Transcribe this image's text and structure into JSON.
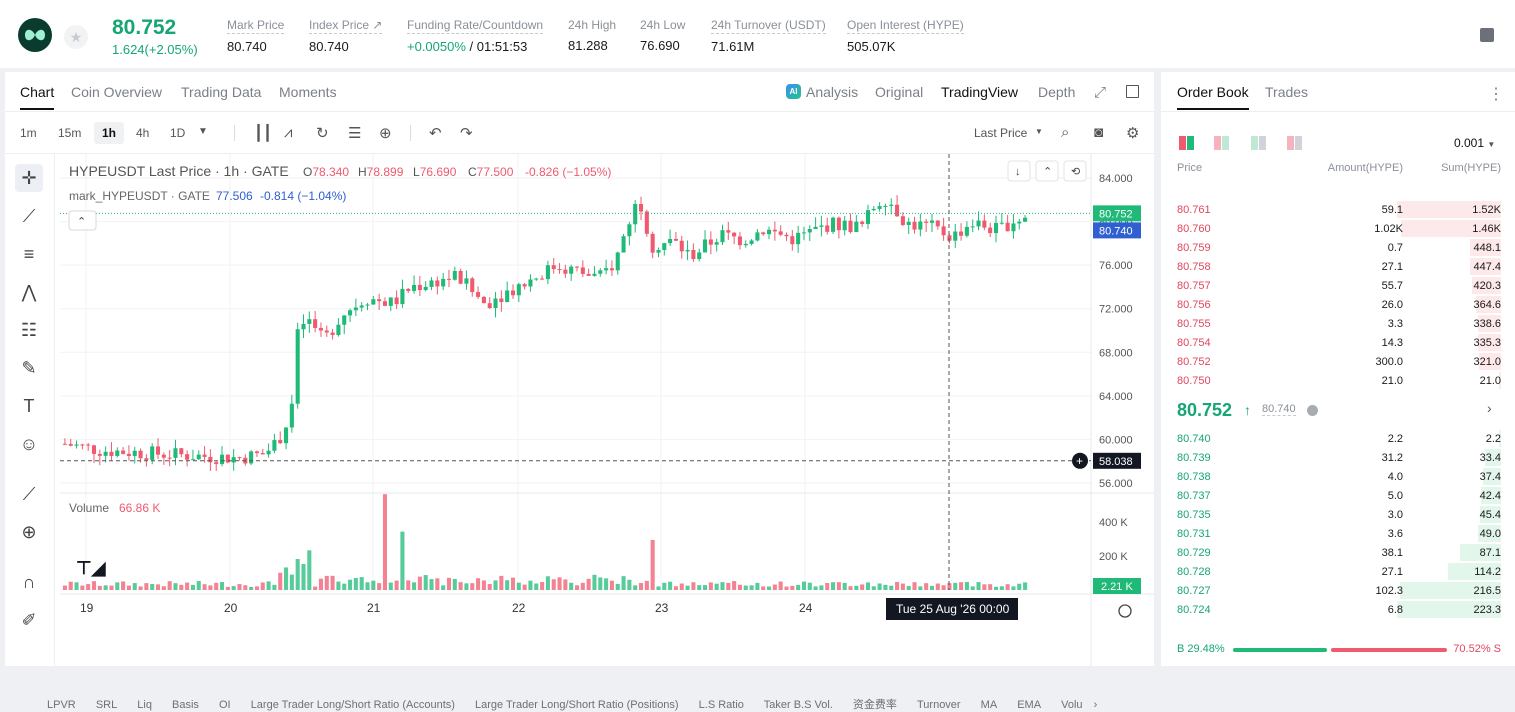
{
  "ticker": {
    "last_price": "80.752",
    "change": "1.624(+2.05%)",
    "stats": [
      {
        "label": "Mark Price",
        "value": "80.740"
      },
      {
        "label": "Index Price ↗",
        "value": "80.740"
      },
      {
        "label": "Funding Rate/Countdown",
        "value_green": "+0.0050%",
        "value": " / 01:51:53"
      },
      {
        "label": "24h High",
        "value": "81.288"
      },
      {
        "label": "24h Low",
        "value": "76.690"
      },
      {
        "label": "24h Turnover (USDT)",
        "value": "71.61M"
      },
      {
        "label": "Open Interest (HYPE)",
        "value": "505.07K"
      }
    ]
  },
  "chart_tabs": [
    "Chart",
    "Coin Overview",
    "Trading Data",
    "Moments"
  ],
  "chart_views": [
    "Analysis",
    "Original",
    "TradingView",
    "Depth"
  ],
  "ai_badge": "AI",
  "timeframes": [
    "1m",
    "15m",
    "1h",
    "4h",
    "1D"
  ],
  "price_type": "Last Price",
  "legend": {
    "symbol": "HYPEUSDT Last Price · 1h · GATE",
    "o_label": "O",
    "o": "78.340",
    "h_label": "H",
    "h": "78.899",
    "l_label": "L",
    "l": "76.690",
    "c_label": "C",
    "c": "77.500",
    "chg": "-0.826 (−1.05%)",
    "mark_line": "mark_HYPEUSDT · GATE",
    "mark_value": "77.506",
    "mark_chg": "-0.814 (−1.04%)",
    "volume_label": "Volume",
    "volume_value": "66.86 K"
  },
  "price_axis": [
    "84.000",
    "80.000",
    "76.000",
    "72.000",
    "68.000",
    "64.000",
    "60.000",
    "56.000"
  ],
  "price_tags": {
    "last": "80.752",
    "mark": "80.740",
    "crosshair": "58.038"
  },
  "volume_axis": [
    "400 K",
    "200 K"
  ],
  "volume_tag": "2.21 K",
  "time_axis": [
    "19",
    "20",
    "21",
    "22",
    "23",
    "24"
  ],
  "crosshair_time": "Tue 25 Aug '26   00:00",
  "indicators": [
    "LPVR",
    "SRL",
    "Liq",
    "Basis",
    "OI",
    "Large Trader Long/Short Ratio (Accounts)",
    "Large Trader Long/Short Ratio (Positions)",
    "L.S Ratio",
    "Taker B.S Vol.",
    "资金费率",
    "Turnover",
    "MA",
    "EMA",
    "Volu"
  ],
  "colors": {
    "up": "#1fb978",
    "down": "#ef5a6f",
    "brand_green": "#17a673"
  },
  "order_book": {
    "tabs": [
      "Order Book",
      "Trades"
    ],
    "precision": "0.001",
    "headers": {
      "price": "Price",
      "amount": "Amount(HYPE)",
      "sum": "Sum(HYPE)"
    },
    "asks": [
      {
        "price": "80.761",
        "amount": "59.1",
        "sum": "1.52K",
        "depth": 1.0
      },
      {
        "price": "80.760",
        "amount": "1.02K",
        "sum": "1.46K",
        "depth": 0.96
      },
      {
        "price": "80.759",
        "amount": "0.7",
        "sum": "448.1",
        "depth": 0.3
      },
      {
        "price": "80.758",
        "amount": "27.1",
        "sum": "447.4",
        "depth": 0.3
      },
      {
        "price": "80.757",
        "amount": "55.7",
        "sum": "420.3",
        "depth": 0.28
      },
      {
        "price": "80.756",
        "amount": "26.0",
        "sum": "364.6",
        "depth": 0.24
      },
      {
        "price": "80.755",
        "amount": "3.3",
        "sum": "338.6",
        "depth": 0.22
      },
      {
        "price": "80.754",
        "amount": "14.3",
        "sum": "335.3",
        "depth": 0.22
      },
      {
        "price": "80.752",
        "amount": "300.0",
        "sum": "321.0",
        "depth": 0.21
      },
      {
        "price": "80.750",
        "amount": "21.0",
        "sum": "21.0",
        "depth": 0.014
      }
    ],
    "mid_price": "80.752",
    "mid_arrow": "↑",
    "mid_mark": "80.740",
    "bids": [
      {
        "price": "80.740",
        "amount": "2.2",
        "sum": "2.2",
        "depth": 0.01
      },
      {
        "price": "80.739",
        "amount": "31.2",
        "sum": "33.4",
        "depth": 0.15
      },
      {
        "price": "80.738",
        "amount": "4.0",
        "sum": "37.4",
        "depth": 0.17
      },
      {
        "price": "80.737",
        "amount": "5.0",
        "sum": "42.4",
        "depth": 0.19
      },
      {
        "price": "80.735",
        "amount": "3.0",
        "sum": "45.4",
        "depth": 0.2
      },
      {
        "price": "80.731",
        "amount": "3.6",
        "sum": "49.0",
        "depth": 0.22
      },
      {
        "price": "80.729",
        "amount": "38.1",
        "sum": "87.1",
        "depth": 0.39
      },
      {
        "price": "80.728",
        "amount": "27.1",
        "sum": "114.2",
        "depth": 0.51
      },
      {
        "price": "80.727",
        "amount": "102.3",
        "sum": "216.5",
        "depth": 0.97
      },
      {
        "price": "80.724",
        "amount": "6.8",
        "sum": "223.3",
        "depth": 1.0
      }
    ],
    "buy_ratio": "B 29.48%",
    "sell_ratio": "70.52% S"
  }
}
